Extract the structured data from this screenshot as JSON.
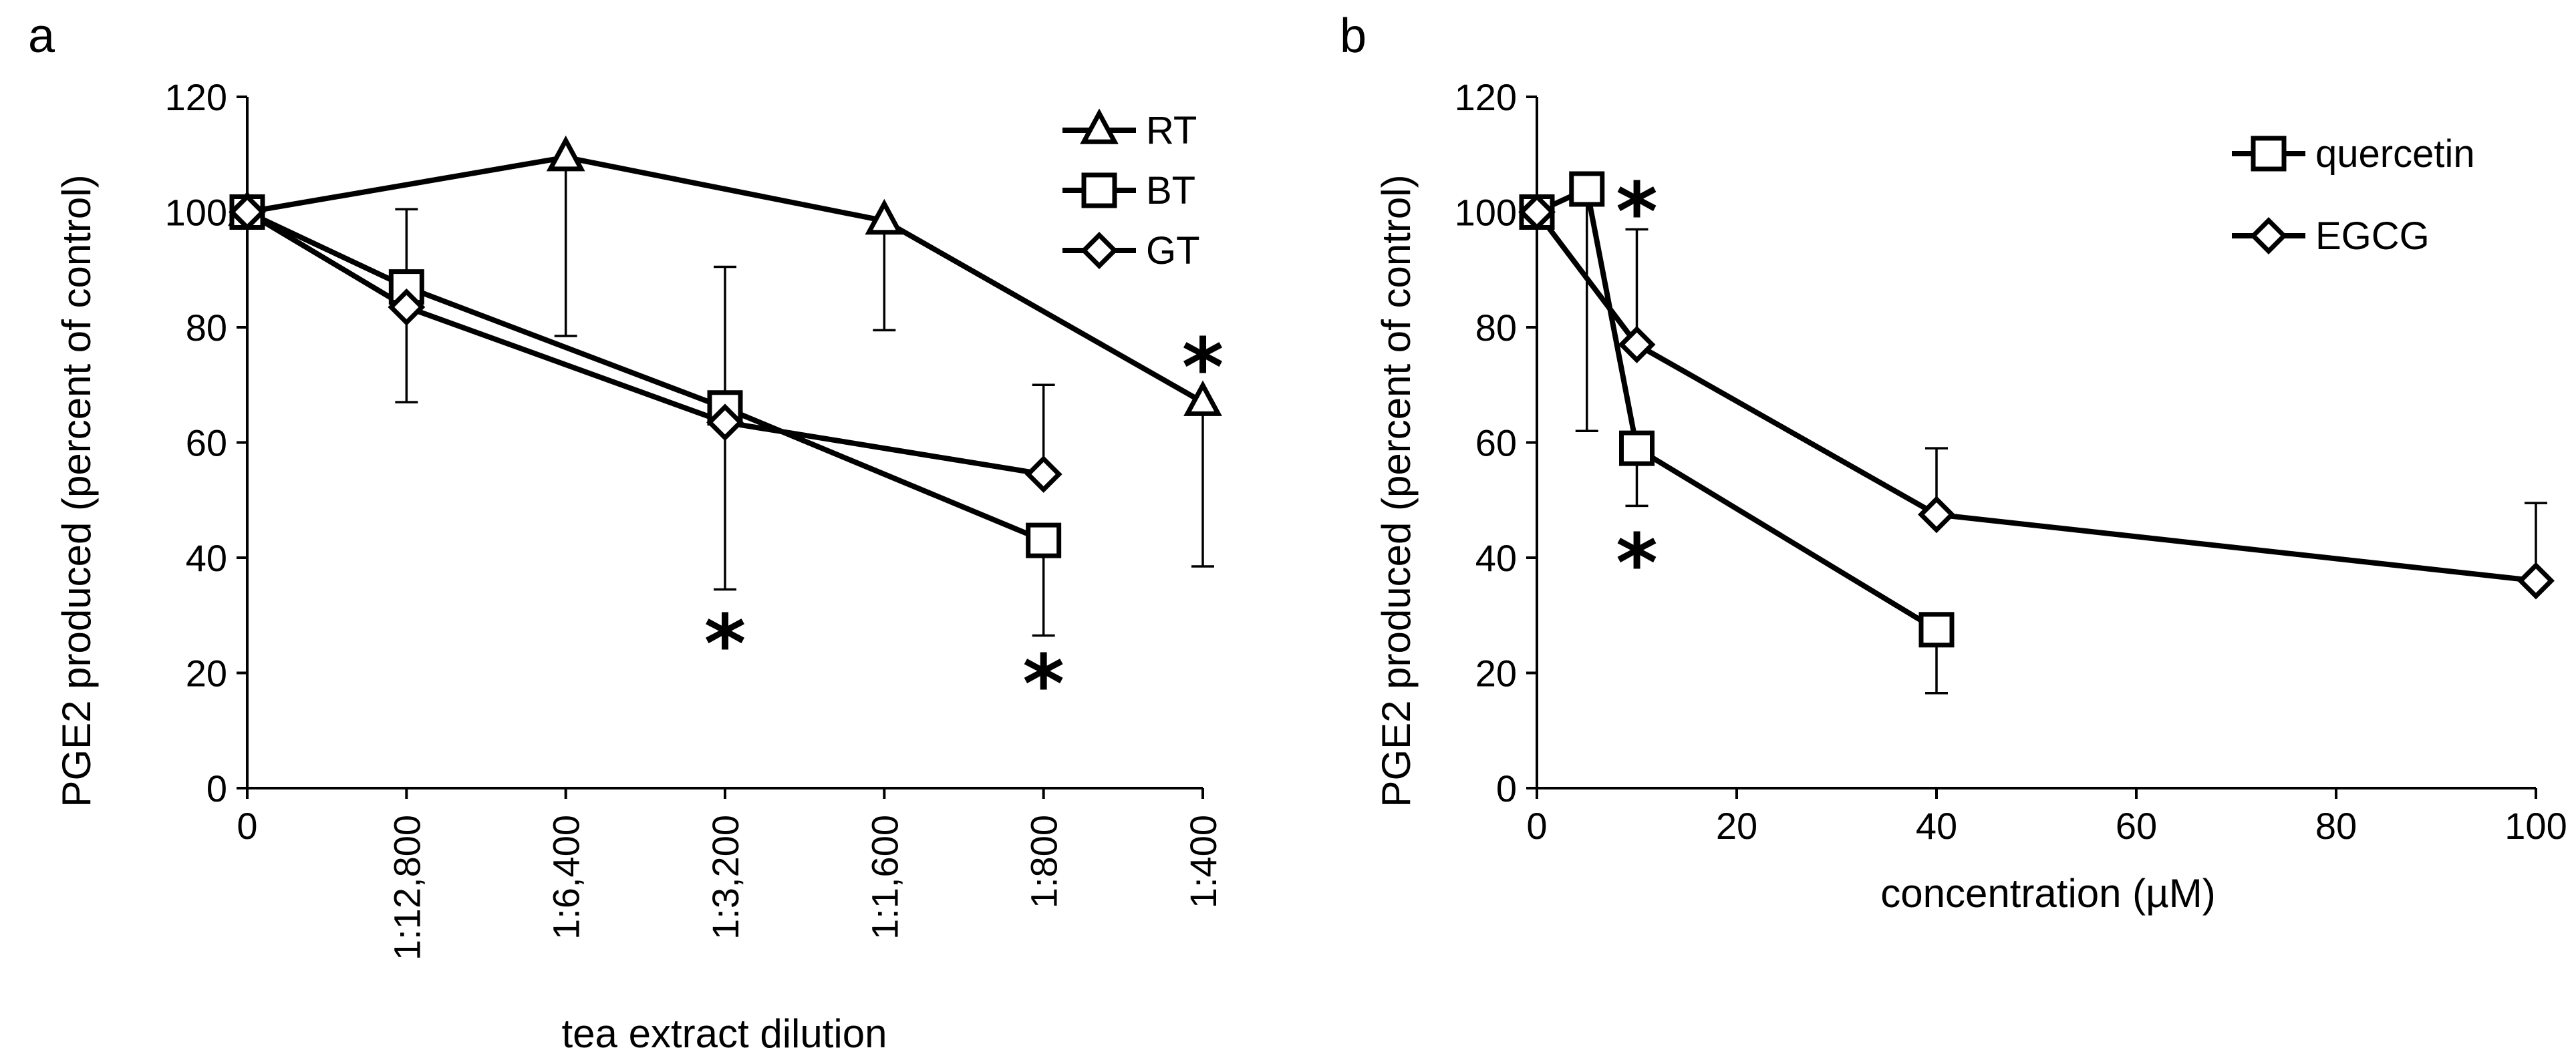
{
  "chart_data": [
    {
      "panel": "a",
      "type": "line",
      "xlabel": "tea extract dilution",
      "ylabel": "PGE2 produced (percent of control)",
      "ylim": [
        0,
        120
      ],
      "yticks": [
        0,
        20,
        40,
        60,
        80,
        100,
        120
      ],
      "categories": [
        "0",
        "1:12,800",
        "1:6,400",
        "1:3,200",
        "1:1,600",
        "1:800",
        "1:400"
      ],
      "legend_position": "top-right",
      "series": [
        {
          "name": "RT",
          "marker": "triangle",
          "points": [
            {
              "cat": 0,
              "y": 100
            },
            {
              "cat": 2,
              "y": 109.5,
              "err_low": 78.5
            },
            {
              "cat": 4,
              "y": 98.5,
              "err_low": 79.5
            },
            {
              "cat": 6,
              "y": 67,
              "err_low": 38.5
            }
          ]
        },
        {
          "name": "BT",
          "marker": "square",
          "points": [
            {
              "cat": 0,
              "y": 100
            },
            {
              "cat": 1,
              "y": 87,
              "err_high": 100.5
            },
            {
              "cat": 3,
              "y": 66,
              "err_high": 90.5
            },
            {
              "cat": 5,
              "y": 43,
              "err_low": 26.5
            }
          ]
        },
        {
          "name": "GT",
          "marker": "diamond",
          "points": [
            {
              "cat": 0,
              "y": 100
            },
            {
              "cat": 1,
              "y": 83.5,
              "err_low": 67
            },
            {
              "cat": 3,
              "y": 63.5,
              "err_low": 34.5
            },
            {
              "cat": 5,
              "y": 54.5,
              "err_high": 70
            }
          ]
        }
      ],
      "annotations": [
        {
          "text": "*",
          "cat": 3,
          "y": 26
        },
        {
          "text": "*",
          "cat": 5,
          "y": 19
        },
        {
          "text": "*",
          "cat": 6,
          "y": 74
        }
      ]
    },
    {
      "panel": "b",
      "type": "line",
      "xlabel": "concentration (µM)",
      "ylabel": "PGE2 produced (percent of control)",
      "xlim": [
        0,
        100
      ],
      "xticks": [
        0,
        20,
        40,
        60,
        80,
        100
      ],
      "ylim": [
        0,
        120
      ],
      "yticks": [
        0,
        20,
        40,
        60,
        80,
        100,
        120
      ],
      "legend_position": "top-right",
      "series": [
        {
          "name": "quercetin",
          "marker": "square",
          "points": [
            {
              "x": 0,
              "y": 100
            },
            {
              "x": 5,
              "y": 104,
              "err_low": 62
            },
            {
              "x": 10,
              "y": 59,
              "err_low": 49
            },
            {
              "x": 40,
              "y": 27.5,
              "err_low": 16.5
            }
          ]
        },
        {
          "name": "EGCG",
          "marker": "diamond",
          "points": [
            {
              "x": 0,
              "y": 100
            },
            {
              "x": 10,
              "y": 77,
              "err_high": 97
            },
            {
              "x": 40,
              "y": 47.5,
              "err_high": 59
            },
            {
              "x": 100,
              "y": 36,
              "err_high": 49.5
            }
          ]
        }
      ],
      "annotations": [
        {
          "text": "*",
          "x": 10,
          "y": 101
        },
        {
          "text": "*",
          "x": 10,
          "y": 40
        }
      ]
    }
  ]
}
